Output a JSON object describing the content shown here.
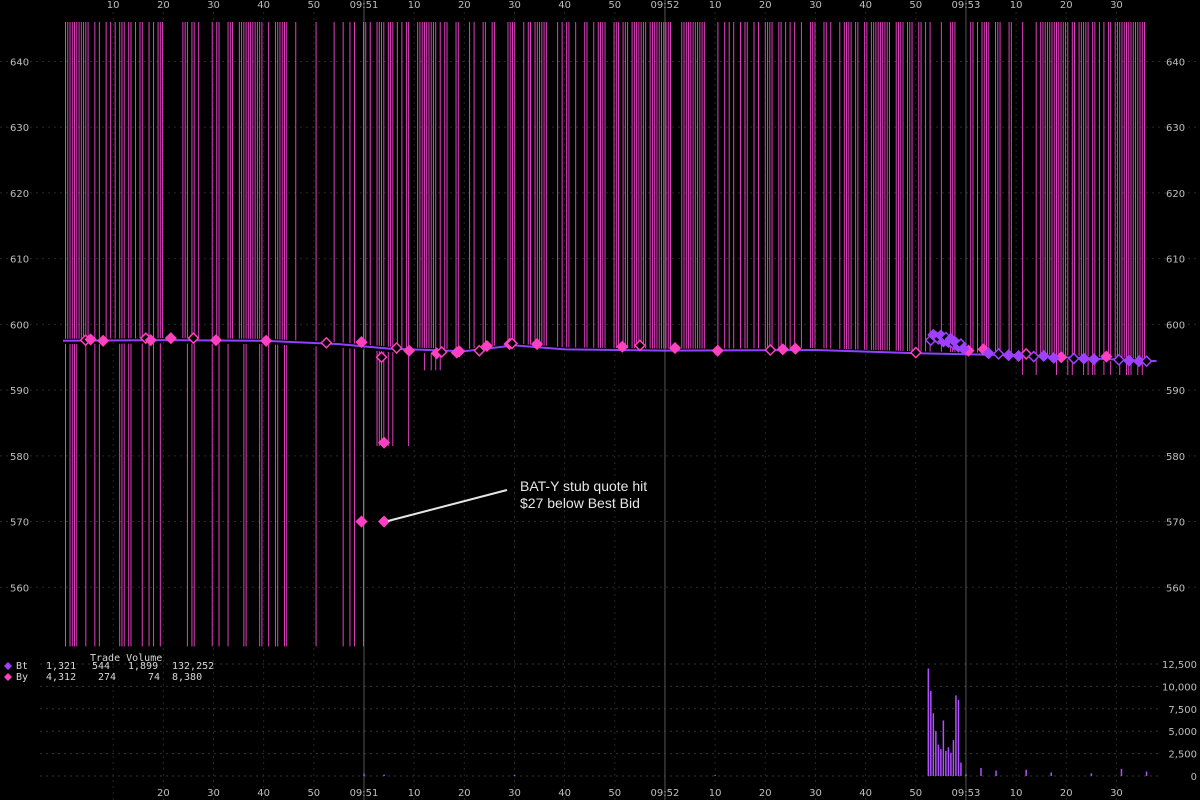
{
  "chart_data": {
    "type": "scatter",
    "price_axis": {
      "ylim": [
        550,
        646
      ],
      "ticks": [
        560,
        570,
        580,
        590,
        600,
        610,
        620,
        630,
        640
      ]
    },
    "volume_axis": {
      "ylim": [
        0,
        12500
      ],
      "ticks": [
        0,
        2500,
        5000,
        7500,
        10000,
        12500
      ],
      "tick_labels": [
        "0",
        "2,500",
        "5,000",
        "7,500",
        "10,000",
        "12,500"
      ]
    },
    "time_axis": {
      "start_second": 0,
      "end_second": 218,
      "top_labels": [
        {
          "t": 10,
          "label": "10"
        },
        {
          "t": 20,
          "label": "20"
        },
        {
          "t": 30,
          "label": "30"
        },
        {
          "t": 40,
          "label": "40"
        },
        {
          "t": 50,
          "label": "50"
        },
        {
          "t": 60,
          "label": "09:51"
        },
        {
          "t": 70,
          "label": "10"
        },
        {
          "t": 80,
          "label": "20"
        },
        {
          "t": 90,
          "label": "30"
        },
        {
          "t": 100,
          "label": "40"
        },
        {
          "t": 110,
          "label": "50"
        },
        {
          "t": 120,
          "label": "09:52"
        },
        {
          "t": 130,
          "label": "10"
        },
        {
          "t": 140,
          "label": "20"
        },
        {
          "t": 150,
          "label": "30"
        },
        {
          "t": 160,
          "label": "40"
        },
        {
          "t": 170,
          "label": "50"
        },
        {
          "t": 180,
          "label": "09:53"
        },
        {
          "t": 190,
          "label": "10"
        },
        {
          "t": 200,
          "label": "20"
        },
        {
          "t": 210,
          "label": "30"
        }
      ],
      "bottom_labels": [
        {
          "t": 20,
          "label": "20"
        },
        {
          "t": 30,
          "label": "30"
        },
        {
          "t": 40,
          "label": "40"
        },
        {
          "t": 50,
          "label": "50"
        },
        {
          "t": 60,
          "label": "09:51"
        },
        {
          "t": 70,
          "label": "10"
        },
        {
          "t": 80,
          "label": "20"
        },
        {
          "t": 90,
          "label": "30"
        },
        {
          "t": 100,
          "label": "40"
        },
        {
          "t": 110,
          "label": "50"
        },
        {
          "t": 120,
          "label": "09:52"
        },
        {
          "t": 130,
          "label": "10"
        },
        {
          "t": 140,
          "label": "20"
        },
        {
          "t": 150,
          "label": "30"
        },
        {
          "t": 160,
          "label": "40"
        },
        {
          "t": 170,
          "label": "50"
        },
        {
          "t": 180,
          "label": "09:53"
        },
        {
          "t": 190,
          "label": "10"
        },
        {
          "t": 200,
          "label": "20"
        },
        {
          "t": 210,
          "label": "30"
        }
      ]
    },
    "legend": {
      "header": "Trade Volume",
      "rows": [
        {
          "symbol": "Bt",
          "color": "#a040ff",
          "values": [
            "1,321",
            "544",
            "1,899",
            "132,252"
          ]
        },
        {
          "symbol": "By",
          "color": "#ff40c0",
          "values": [
            "4,312",
            "274",
            "74",
            "8,380"
          ]
        }
      ]
    },
    "series": [
      {
        "name": "By",
        "color": "#ff40c0",
        "trades": [
          {
            "t": 4.5,
            "price": 597.6
          },
          {
            "t": 5.5,
            "price": 597.7
          },
          {
            "t": 8,
            "price": 597.5
          },
          {
            "t": 16.5,
            "price": 597.9
          },
          {
            "t": 17.5,
            "price": 597.6
          },
          {
            "t": 21.5,
            "price": 597.9
          },
          {
            "t": 26,
            "price": 597.9
          },
          {
            "t": 30.5,
            "price": 597.6
          },
          {
            "t": 40.5,
            "price": 597.5
          },
          {
            "t": 52.5,
            "price": 597.2
          },
          {
            "t": 59.5,
            "price": 597.3
          },
          {
            "t": 59.5,
            "price": 570.0
          },
          {
            "t": 63.5,
            "price": 595.0
          },
          {
            "t": 64,
            "price": 582.0
          },
          {
            "t": 64,
            "price": 570.0
          },
          {
            "t": 66.5,
            "price": 596.4
          },
          {
            "t": 69,
            "price": 596.0
          },
          {
            "t": 74.5,
            "price": 595.6
          },
          {
            "t": 75.5,
            "price": 595.8
          },
          {
            "t": 78.5,
            "price": 595.7
          },
          {
            "t": 79,
            "price": 595.9
          },
          {
            "t": 83,
            "price": 596.0
          },
          {
            "t": 84.5,
            "price": 596.7
          },
          {
            "t": 89,
            "price": 597.0
          },
          {
            "t": 89.5,
            "price": 597.1
          },
          {
            "t": 94.5,
            "price": 597.0
          },
          {
            "t": 111.5,
            "price": 596.6
          },
          {
            "t": 115,
            "price": 596.8
          },
          {
            "t": 122,
            "price": 596.4
          },
          {
            "t": 130.5,
            "price": 596.0
          },
          {
            "t": 141,
            "price": 596.1
          },
          {
            "t": 143.5,
            "price": 596.2
          },
          {
            "t": 146,
            "price": 596.3
          },
          {
            "t": 170,
            "price": 595.7
          },
          {
            "t": 180.5,
            "price": 596.0
          },
          {
            "t": 183.5,
            "price": 596.2
          },
          {
            "t": 192,
            "price": 595.5
          },
          {
            "t": 199,
            "price": 595.0
          },
          {
            "t": 208,
            "price": 595.1
          }
        ]
      },
      {
        "name": "Bt",
        "color": "#a040ff",
        "trades": [
          {
            "t": 173,
            "price": 597.6
          },
          {
            "t": 173.5,
            "price": 598.4
          },
          {
            "t": 174,
            "price": 598.1
          },
          {
            "t": 174.5,
            "price": 597.8
          },
          {
            "t": 175,
            "price": 598.3
          },
          {
            "t": 175.5,
            "price": 597.4
          },
          {
            "t": 176,
            "price": 598.0
          },
          {
            "t": 176.5,
            "price": 597.3
          },
          {
            "t": 177,
            "price": 597.8
          },
          {
            "t": 177.5,
            "price": 597.0
          },
          {
            "t": 178,
            "price": 597.2
          },
          {
            "t": 178.5,
            "price": 596.6
          },
          {
            "t": 179,
            "price": 597.0
          },
          {
            "t": 179.5,
            "price": 596.3
          },
          {
            "t": 184.5,
            "price": 595.6
          },
          {
            "t": 186.5,
            "price": 595.5
          },
          {
            "t": 188.5,
            "price": 595.3
          },
          {
            "t": 190.5,
            "price": 595.2
          },
          {
            "t": 193.5,
            "price": 595.1
          },
          {
            "t": 195.5,
            "price": 595.2
          },
          {
            "t": 197.5,
            "price": 594.9
          },
          {
            "t": 201.5,
            "price": 594.8
          },
          {
            "t": 203.5,
            "price": 594.8
          },
          {
            "t": 205.5,
            "price": 594.7
          },
          {
            "t": 210.5,
            "price": 594.6
          },
          {
            "t": 212.5,
            "price": 594.5
          },
          {
            "t": 214.5,
            "price": 594.4
          },
          {
            "t": 216,
            "price": 594.4
          }
        ]
      }
    ],
    "nbbo": [
      {
        "t": 0,
        "price": 597.5
      },
      {
        "t": 20,
        "price": 597.6
      },
      {
        "t": 40,
        "price": 597.5
      },
      {
        "t": 55,
        "price": 597.0
      },
      {
        "t": 65,
        "price": 596.3
      },
      {
        "t": 80,
        "price": 595.9
      },
      {
        "t": 90,
        "price": 596.8
      },
      {
        "t": 100,
        "price": 596.2
      },
      {
        "t": 120,
        "price": 596.0
      },
      {
        "t": 150,
        "price": 596.1
      },
      {
        "t": 170,
        "price": 595.6
      },
      {
        "t": 190,
        "price": 595.3
      },
      {
        "t": 218,
        "price": 594.4
      }
    ],
    "volume_spikes": [
      {
        "t": 172.5,
        "volume": 12000
      },
      {
        "t": 173,
        "volume": 9500
      },
      {
        "t": 173.5,
        "volume": 7000
      },
      {
        "t": 174,
        "volume": 5000
      },
      {
        "t": 174.5,
        "volume": 3500
      },
      {
        "t": 175,
        "volume": 3000
      },
      {
        "t": 175.5,
        "volume": 6200
      },
      {
        "t": 176,
        "volume": 2800
      },
      {
        "t": 176.5,
        "volume": 3200
      },
      {
        "t": 177,
        "volume": 2600
      },
      {
        "t": 177.5,
        "volume": 4000
      },
      {
        "t": 178,
        "volume": 9000
      },
      {
        "t": 178.5,
        "volume": 8500
      },
      {
        "t": 179,
        "volume": 1500
      },
      {
        "t": 180,
        "volume": 200
      },
      {
        "t": 183,
        "volume": 900
      },
      {
        "t": 186,
        "volume": 600
      },
      {
        "t": 192,
        "volume": 700
      },
      {
        "t": 197,
        "volume": 400
      },
      {
        "t": 205,
        "volume": 300
      },
      {
        "t": 211,
        "volume": 800
      },
      {
        "t": 216,
        "volume": 500
      },
      {
        "t": 60,
        "volume": 250
      },
      {
        "t": 64,
        "volume": 150
      },
      {
        "t": 90,
        "volume": 120
      },
      {
        "t": 130,
        "volume": 100
      }
    ],
    "annotation": {
      "line1": "BAT-Y stub quote hit",
      "line2": "$27 below Best Bid",
      "points_to": {
        "t": 64.5,
        "price": 570.0
      }
    }
  }
}
